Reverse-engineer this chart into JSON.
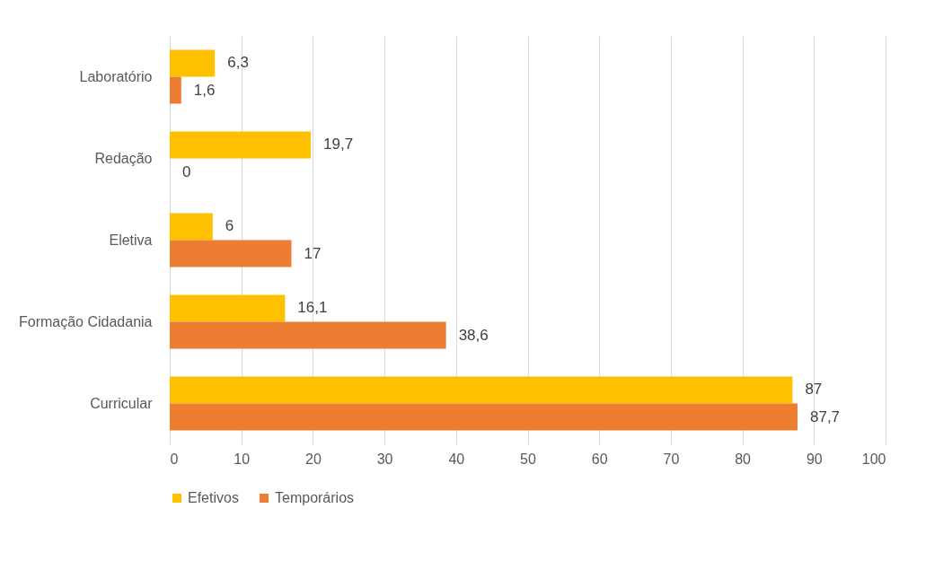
{
  "chart_data": {
    "type": "bar",
    "orientation": "horizontal",
    "categories": [
      "Laboratório",
      "Redação",
      "Eletiva",
      "Formação Cidadania",
      "Curricular"
    ],
    "series": [
      {
        "name": "Efetivos",
        "color": "#ffc000",
        "values": [
          6.3,
          19.7,
          6,
          16.1,
          87
        ],
        "value_labels": [
          "6,3",
          "19,7",
          "6",
          "16,1",
          "87"
        ]
      },
      {
        "name": "Temporários",
        "color": "#ed7d31",
        "values": [
          1.6,
          0,
          17,
          38.6,
          87.7
        ],
        "value_labels": [
          "1,6",
          "0",
          "17",
          "38,6",
          "87,7"
        ]
      }
    ],
    "xlim": [
      0,
      100
    ],
    "xticks": [
      0,
      10,
      20,
      30,
      40,
      50,
      60,
      70,
      80,
      90,
      100
    ],
    "grid": "x",
    "legend": "bottom"
  }
}
